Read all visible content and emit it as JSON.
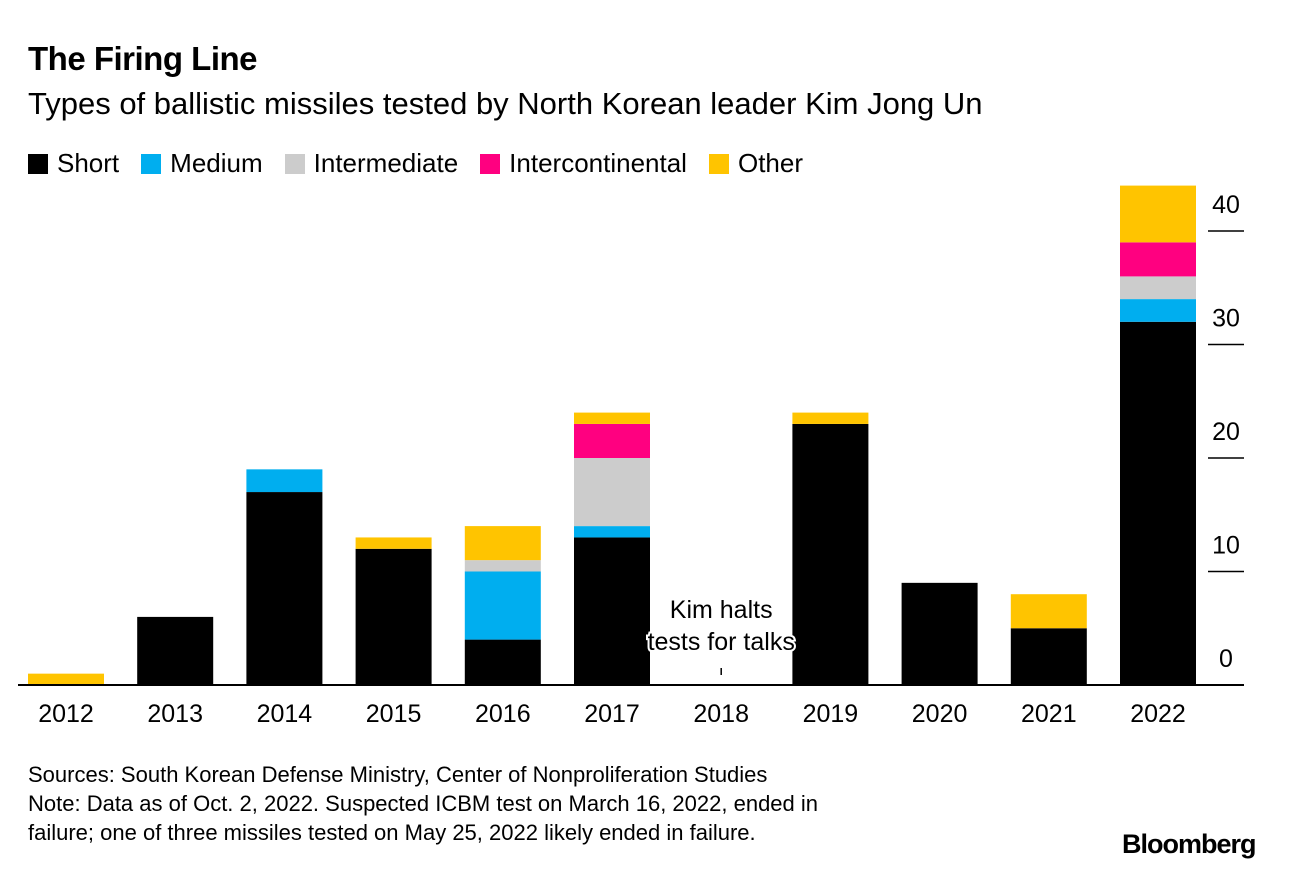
{
  "header": {
    "title": "The Firing Line",
    "subtitle": "Types of ballistic missiles tested by North Korean leader Kim Jong Un"
  },
  "legend": [
    {
      "label": "Short",
      "color": "#000000"
    },
    {
      "label": "Medium",
      "color": "#00aeef"
    },
    {
      "label": "Intermediate",
      "color": "#cccccc"
    },
    {
      "label": "Intercontinental",
      "color": "#ff0080"
    },
    {
      "label": "Other",
      "color": "#ffc400"
    }
  ],
  "chart_data": {
    "type": "bar",
    "stacked": true,
    "title": "The Firing Line",
    "subtitle": "Types of ballistic missiles tested by North Korean leader Kim Jong Un",
    "categories": [
      "2012",
      "2013",
      "2014",
      "2015",
      "2016",
      "2017",
      "2018",
      "2019",
      "2020",
      "2021",
      "2022"
    ],
    "series": [
      {
        "name": "Short",
        "color": "#000000",
        "values": [
          0,
          6,
          17,
          12,
          4,
          13,
          0,
          23,
          9,
          5,
          32
        ]
      },
      {
        "name": "Medium",
        "color": "#00aeef",
        "values": [
          0,
          0,
          2,
          0,
          6,
          1,
          0,
          0,
          0,
          0,
          2
        ]
      },
      {
        "name": "Intermediate",
        "color": "#cccccc",
        "values": [
          0,
          0,
          0,
          0,
          1,
          6,
          0,
          0,
          0,
          0,
          2
        ]
      },
      {
        "name": "Intercontinental",
        "color": "#ff0080",
        "values": [
          0,
          0,
          0,
          0,
          0,
          3,
          0,
          0,
          0,
          0,
          3
        ]
      },
      {
        "name": "Other",
        "color": "#ffc400",
        "values": [
          1,
          0,
          0,
          1,
          3,
          1,
          0,
          1,
          0,
          3,
          5
        ]
      }
    ],
    "yticks": [
      0,
      10,
      20,
      30,
      40
    ],
    "ylim": [
      0,
      44
    ],
    "y_axis_position": "right",
    "annotation": {
      "category": "2018",
      "lines": [
        "Kim halts",
        "tests for talks"
      ]
    },
    "xlabel": "",
    "ylabel": ""
  },
  "footer": {
    "sources": "Sources: South Korean Defense Ministry, Center of Nonproliferation Studies",
    "note_line1": "Note: Data as of Oct. 2, 2022. Suspected ICBM test on March 16, 2022, ended in",
    "note_line2": "failure; one of three missiles tested on May 25, 2022 likely ended in failure."
  },
  "brand": "Bloomberg"
}
